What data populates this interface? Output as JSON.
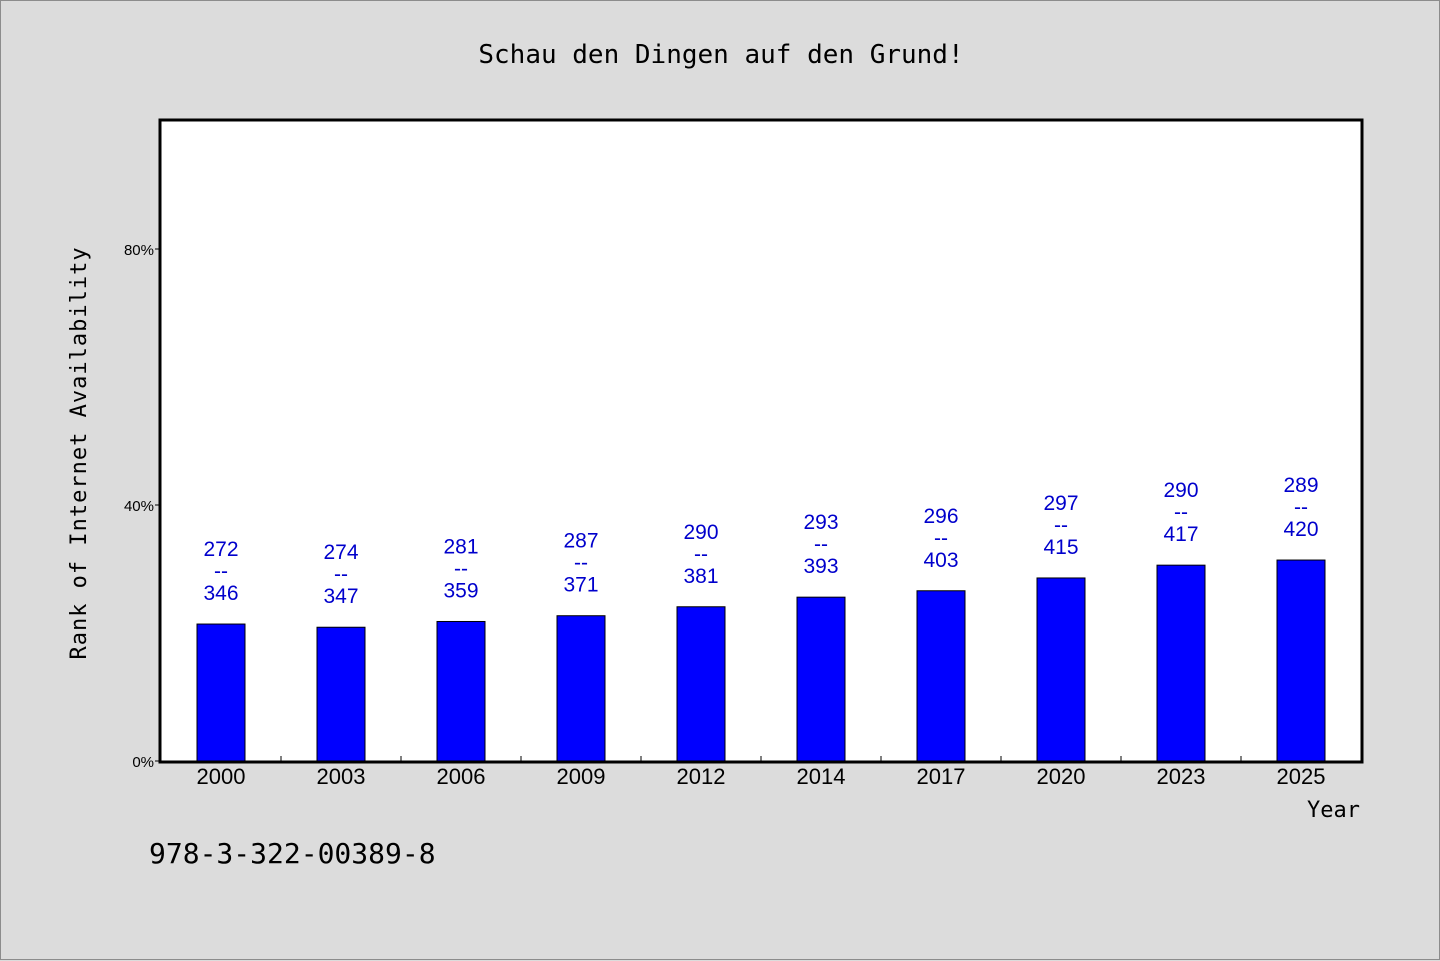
{
  "footnote": "978-3-322-00389-8",
  "colors": {
    "background": "#dcdcdc",
    "plot_background": "#ffffff",
    "bar": "#0000ff",
    "label": "#0000cc"
  },
  "chart_data": {
    "type": "bar",
    "title": "Schau den Dingen auf den Grund!",
    "xlabel": "Year",
    "ylabel": "Rank of Internet Availability",
    "categories": [
      "2000",
      "2003",
      "2006",
      "2009",
      "2012",
      "2014",
      "2017",
      "2020",
      "2023",
      "2025"
    ],
    "values": [
      21.4,
      20.9,
      21.8,
      22.7,
      24.1,
      25.6,
      26.6,
      28.6,
      30.6,
      31.4
    ],
    "labels_top": [
      "272",
      "274",
      "281",
      "287",
      "290",
      "293",
      "296",
      "297",
      "290",
      "289"
    ],
    "labels_bottom": [
      "346",
      "347",
      "359",
      "371",
      "381",
      "393",
      "403",
      "415",
      "417",
      "420"
    ],
    "label_separator": "--",
    "yticks": [
      0,
      40,
      80
    ],
    "ytick_labels": [
      "0%",
      "40%",
      "80%"
    ],
    "ylim": [
      0,
      100
    ],
    "grid": false,
    "legend": "none"
  }
}
